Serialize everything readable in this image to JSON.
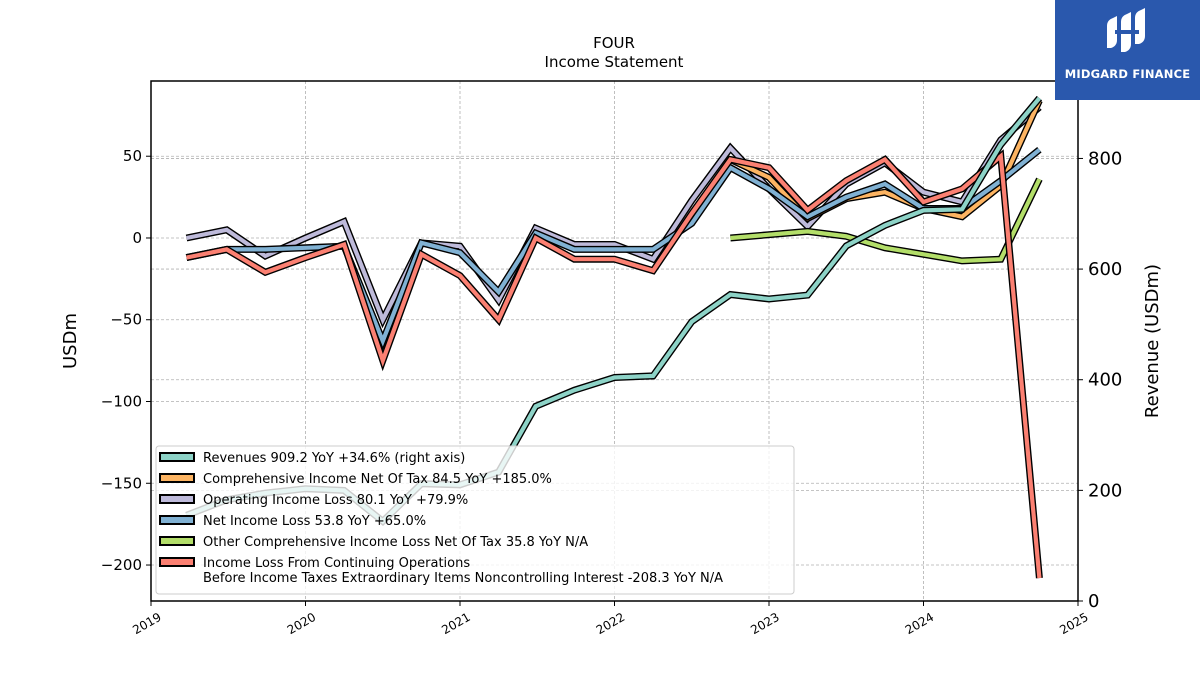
{
  "logo": {
    "text": "MIDGARD FINANCE"
  },
  "chart_data": {
    "type": "line",
    "title": "FOUR",
    "subtitle": "Income Statement",
    "ylabel": "USDm",
    "ylabel_right": "Revenue (USDm)",
    "xlim": [
      2019.0,
      2025.0
    ],
    "ylim": [
      -222,
      96
    ],
    "ylim_right": [
      0,
      940
    ],
    "x_ticks": [
      "2019",
      "2020",
      "2021",
      "2022",
      "2023",
      "2024",
      "2025"
    ],
    "y_ticks": [
      "50",
      "0",
      "−50",
      "−100",
      "−150",
      "−200"
    ],
    "y_ticks_right": [
      "800",
      "600",
      "400",
      "200",
      "0"
    ],
    "grid": true,
    "legend_position": "lower-left",
    "series": [
      {
        "name": "Revenues  909.2 YoY +34.6% (right axis)",
        "color": "#8dd3c7",
        "axis": "right",
        "x": [
          2019.23,
          2019.49,
          2019.74,
          2020.0,
          2020.25,
          2020.5,
          2020.75,
          2021.0,
          2021.25,
          2021.49,
          2021.74,
          2022.0,
          2022.25,
          2022.5,
          2022.75,
          2023.0,
          2023.25,
          2023.5,
          2023.75,
          2024.0,
          2024.25,
          2024.5,
          2024.75
        ],
        "values": [
          155,
          183,
          195,
          203,
          200,
          144,
          212,
          210,
          233,
          352,
          381,
          404,
          407,
          505,
          554,
          546,
          553,
          642,
          679,
          706,
          708,
          825,
          909
        ]
      },
      {
        "name": "Comprehensive Income Net Of Tax  84.5 YoY +185.0%",
        "color": "#fdb462",
        "axis": "left",
        "x": [
          2022.75,
          2023.0,
          2023.25,
          2023.5,
          2023.75,
          2024.0,
          2024.25,
          2024.5,
          2024.75
        ],
        "values": [
          48,
          37,
          12,
          24,
          28,
          18,
          13,
          32,
          84
        ]
      },
      {
        "name": "Operating Income Loss  80.1 YoY +79.9%",
        "color": "#bebada",
        "axis": "left",
        "x": [
          2019.23,
          2019.49,
          2019.74,
          2020.0,
          2020.25,
          2020.5,
          2020.75,
          2021.0,
          2021.25,
          2021.49,
          2021.74,
          2022.0,
          2022.25,
          2022.5,
          2022.75,
          2023.0,
          2023.25,
          2023.5,
          2023.75,
          2024.0,
          2024.25,
          2024.5,
          2024.75
        ],
        "values": [
          0,
          5,
          -11,
          0,
          10,
          -50,
          -3,
          -5,
          -38,
          6,
          -4,
          -4,
          -13,
          23,
          55,
          30,
          7,
          33,
          46,
          28,
          22,
          60,
          80
        ]
      },
      {
        "name": "Net Income Loss  53.8 YoY +65.0%",
        "color": "#80b1d3",
        "axis": "left",
        "x": [
          2019.23,
          2019.49,
          2019.74,
          2020.0,
          2020.25,
          2020.5,
          2020.75,
          2021.0,
          2021.25,
          2021.49,
          2021.74,
          2022.0,
          2022.25,
          2022.5,
          2022.75,
          2023.0,
          2023.25,
          2023.5,
          2023.75,
          2024.0,
          2024.25,
          2024.5,
          2024.75
        ],
        "values": [
          -12,
          -7,
          -7,
          -6,
          -5,
          -63,
          -3,
          -9,
          -33,
          3,
          -7,
          -7,
          -7,
          9,
          43,
          30,
          13,
          25,
          33,
          18,
          18,
          35,
          54
        ]
      },
      {
        "name": "Other Comprehensive Income Loss Net Of Tax  35.8 YoY N/A",
        "color": "#b3de69",
        "axis": "left",
        "x": [
          2022.75,
          2023.0,
          2023.25,
          2023.5,
          2023.75,
          2024.0,
          2024.25,
          2024.5,
          2024.75
        ],
        "values": [
          0,
          2,
          4,
          1,
          -6,
          -10,
          -14,
          -13,
          36
        ]
      },
      {
        "name": "Income Loss From Continuing Operations\nBefore Income Taxes Extraordinary Items Noncontrolling Interest  -208.3 YoY N/A",
        "color": "#fb8072",
        "axis": "left",
        "x": [
          2019.23,
          2019.49,
          2019.74,
          2020.0,
          2020.25,
          2020.5,
          2020.75,
          2021.0,
          2021.25,
          2021.49,
          2021.74,
          2022.0,
          2022.25,
          2022.5,
          2022.75,
          2023.0,
          2023.25,
          2023.5,
          2023.75,
          2024.0,
          2024.25,
          2024.5,
          2024.75
        ],
        "values": [
          -12,
          -7,
          -21,
          -12,
          -4,
          -75,
          -10,
          -23,
          -50,
          0,
          -13,
          -13,
          -20,
          15,
          48,
          43,
          17,
          35,
          48,
          22,
          30,
          50,
          -208
        ]
      }
    ]
  }
}
